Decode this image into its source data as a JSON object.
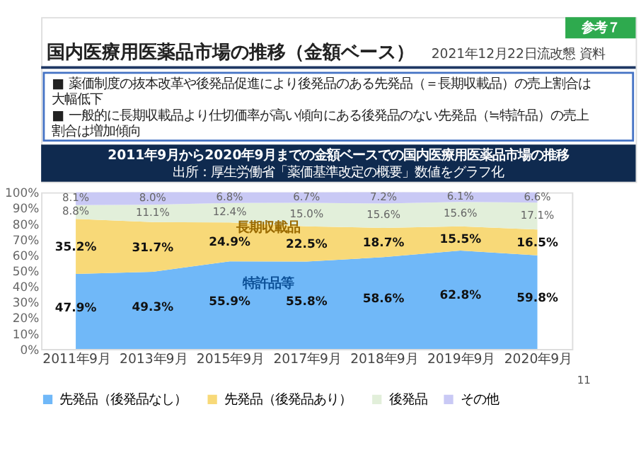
{
  "chart_data": {
    "type": "area",
    "title": "2011年9月から2020年9月までの金額ベースでの国内医療用医薬品市場の推移",
    "subtitle": "出所：厚生労働省「薬価基準改定の概要」数値をグラフ化",
    "annotations": [
      "参考７",
      "国内医療用医薬品市場の推移（金額ベース）",
      "2021年12月22日流改懇 資料",
      "■ 薬価制度の抜本改革や後発品促進により後発品のある先発品（＝長期収載品）の売上割合は大幅低下",
      "■ 一般的に長期収載品より仕切価率が高い傾向にある後発品のない先発品（≒特許品）の売上割合は増加傾向",
      "長期収載品",
      "特許品等",
      "11"
    ],
    "categories": [
      "2011年9月",
      "2013年9月",
      "2015年9月",
      "2017年9月",
      "2018年9月",
      "2019年9月",
      "2020年9月"
    ],
    "stacked": true,
    "series": [
      {
        "name": "先発品（後発品なし）",
        "color": "#70b8f8",
        "values": [
          47.9,
          49.3,
          55.9,
          55.8,
          58.6,
          62.8,
          59.8
        ],
        "value_labels": [
          "47.9%",
          "49.3%",
          "55.9%",
          "55.8%",
          "58.6%",
          "62.8%",
          "59.8%"
        ]
      },
      {
        "name": "先発品（後発品あり）",
        "color": "#f8d978",
        "values": [
          35.2,
          31.7,
          24.9,
          22.5,
          18.7,
          15.5,
          16.5
        ],
        "value_labels": [
          "35.2%",
          "31.7%",
          "24.9%",
          "22.5%",
          "18.7%",
          "15.5%",
          "16.5%"
        ]
      },
      {
        "name": "後発品",
        "color": "#e2efda",
        "values": [
          8.8,
          11.1,
          12.4,
          15.0,
          15.6,
          15.6,
          17.1
        ],
        "value_labels": [
          "8.8%",
          "11.1%",
          "12.4%",
          "15.0%",
          "15.6%",
          "15.6%",
          "17.1%"
        ]
      },
      {
        "name": "その他",
        "color": "#c9c9f5",
        "values": [
          8.1,
          8.0,
          6.8,
          6.7,
          7.2,
          6.1,
          6.6
        ],
        "value_labels": [
          "8.1%",
          "8.0%",
          "6.8%",
          "6.7%",
          "7.2%",
          "6.1%",
          "6.6%"
        ]
      }
    ],
    "ylim": [
      0,
      100
    ],
    "yticks": [
      {
        "value": 0,
        "label": "0%"
      },
      {
        "value": 10,
        "label": "10%"
      },
      {
        "value": 20,
        "label": "20%"
      },
      {
        "value": 30,
        "label": "30%"
      },
      {
        "value": 40,
        "label": "40%"
      },
      {
        "value": 50,
        "label": "50%"
      },
      {
        "value": 60,
        "label": "60%"
      },
      {
        "value": 70,
        "label": "70%"
      },
      {
        "value": 80,
        "label": "80%"
      },
      {
        "value": 90,
        "label": "90%"
      },
      {
        "value": 100,
        "label": "100%"
      }
    ],
    "grid": false,
    "legend": "bottom"
  }
}
